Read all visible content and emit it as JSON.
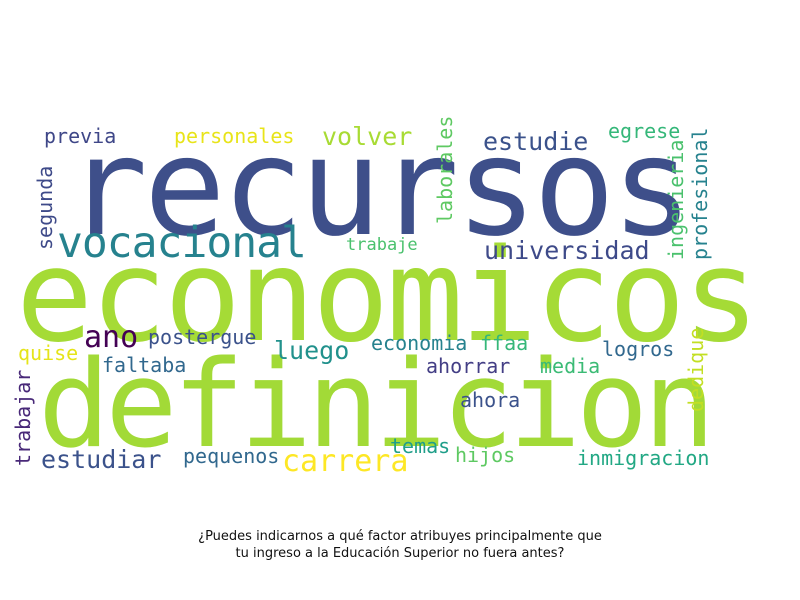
{
  "caption": {
    "line1": "¿Puedes indicarnos a qué factor atribuyes principalmente que",
    "line2": "tu ingreso a la Educación Superior no fuera antes?"
  },
  "words": [
    {
      "text": "recursos",
      "color": "#3e4f8a",
      "orientation": "horizontal"
    },
    {
      "text": "economicos",
      "color": "#a5db36",
      "orientation": "horizontal"
    },
    {
      "text": "definicion",
      "color": "#a2da37",
      "orientation": "horizontal"
    },
    {
      "text": "vocacional",
      "color": "#26828e",
      "orientation": "horizontal"
    },
    {
      "text": "volver",
      "color": "#a8db34",
      "orientation": "horizontal"
    },
    {
      "text": "estudie",
      "color": "#3b528b",
      "orientation": "horizontal"
    },
    {
      "text": "universidad",
      "color": "#3e4a89",
      "orientation": "horizontal"
    },
    {
      "text": "personales",
      "color": "#e8e419",
      "orientation": "horizontal"
    },
    {
      "text": "previa",
      "color": "#3f4788",
      "orientation": "horizontal"
    },
    {
      "text": "egrese",
      "color": "#35b779",
      "orientation": "horizontal"
    },
    {
      "text": "trabaje",
      "color": "#4ac16d",
      "orientation": "horizontal"
    },
    {
      "text": "ano",
      "color": "#440154",
      "orientation": "horizontal"
    },
    {
      "text": "postergue",
      "color": "#3b528b",
      "orientation": "horizontal"
    },
    {
      "text": "luego",
      "color": "#21918c",
      "orientation": "horizontal"
    },
    {
      "text": "economia",
      "color": "#26828e",
      "orientation": "horizontal"
    },
    {
      "text": "ffaa",
      "color": "#35b779",
      "orientation": "horizontal"
    },
    {
      "text": "logros",
      "color": "#31688e",
      "orientation": "horizontal"
    },
    {
      "text": "quise",
      "color": "#e5e419",
      "orientation": "horizontal"
    },
    {
      "text": "faltaba",
      "color": "#31688e",
      "orientation": "horizontal"
    },
    {
      "text": "ahorrar",
      "color": "#433e85",
      "orientation": "horizontal"
    },
    {
      "text": "media",
      "color": "#3bbb75",
      "orientation": "horizontal"
    },
    {
      "text": "ahora",
      "color": "#3b528b",
      "orientation": "horizontal"
    },
    {
      "text": "estudiar",
      "color": "#3b528b",
      "orientation": "horizontal"
    },
    {
      "text": "pequenos",
      "color": "#31688e",
      "orientation": "horizontal"
    },
    {
      "text": "carrera",
      "color": "#fde725",
      "orientation": "horizontal"
    },
    {
      "text": "temas",
      "color": "#1f9e89",
      "orientation": "horizontal"
    },
    {
      "text": "hijos",
      "color": "#5ec962",
      "orientation": "horizontal"
    },
    {
      "text": "inmigracion",
      "color": "#22a884",
      "orientation": "horizontal"
    },
    {
      "text": "segunda",
      "color": "#3e4a89",
      "orientation": "vertical"
    },
    {
      "text": "laborales",
      "color": "#5ec962",
      "orientation": "vertical"
    },
    {
      "text": "ingenieria",
      "color": "#4ac16d",
      "orientation": "vertical"
    },
    {
      "text": "profesional",
      "color": "#26828e",
      "orientation": "vertical"
    },
    {
      "text": "dedique",
      "color": "#c2df23",
      "orientation": "vertical"
    },
    {
      "text": "trabajar",
      "color": "#482878",
      "orientation": "vertical"
    }
  ]
}
